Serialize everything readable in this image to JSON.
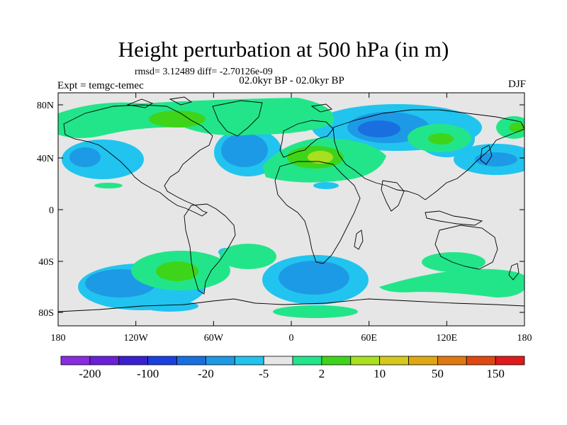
{
  "title": "Height perturbation at 500 hPa (in m)",
  "stats": "rmsd= 3.12489 diff= -2.70126e-09",
  "period": "02.0kyr BP - 02.0kyr BP",
  "expt": "Expt = temgc-temec",
  "season": "DJF",
  "lat_labels": [
    "80N",
    "40N",
    "0",
    "40S",
    "80S"
  ],
  "lon_labels": [
    "180",
    "120W",
    "60W",
    "0",
    "60E",
    "120E",
    "180"
  ],
  "colorbar": {
    "colors": [
      "#8a2be2",
      "#6a20d8",
      "#3a1fd0",
      "#1a40e0",
      "#1a6fe0",
      "#1d9ae6",
      "#21c4ee",
      "#e6e6e6",
      "#22e58a",
      "#3ed41a",
      "#a8e020",
      "#d6c81c",
      "#e0a810",
      "#e07810",
      "#e04810",
      "#e01a1a"
    ],
    "labels": [
      "-200",
      "-100",
      "-20",
      "-5",
      "2",
      "10",
      "50",
      "150"
    ]
  },
  "map_background": "#e6e6e6"
}
